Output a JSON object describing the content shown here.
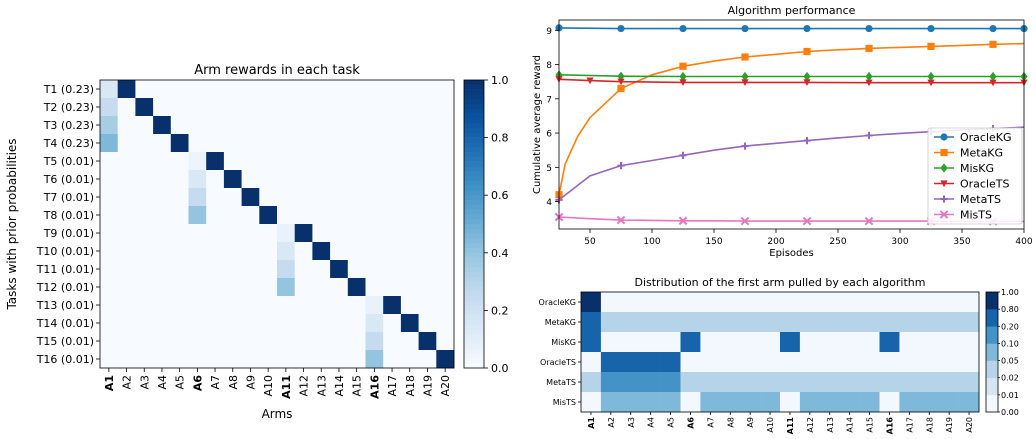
{
  "chart_data": [
    {
      "type": "heatmap",
      "title": "Arm rewards in each task",
      "xlabel": "Arms",
      "ylabel": "Tasks with prior probabilities",
      "x_tick_labels": [
        "A1",
        "A2",
        "A3",
        "A4",
        "A5",
        "A6",
        "A7",
        "A8",
        "A9",
        "A10",
        "A11",
        "A12",
        "A13",
        "A14",
        "A15",
        "A16",
        "A17",
        "A18",
        "A19",
        "A20"
      ],
      "bold_x_ticks": [
        "A1",
        "A6",
        "A11",
        "A16"
      ],
      "y_tick_labels": [
        "T1 (0.23)",
        "T2 (0.23)",
        "T3 (0.23)",
        "T4 (0.23)",
        "T5 (0.01)",
        "T6 (0.01)",
        "T7 (0.01)",
        "T8 (0.01)",
        "T9 (0.01)",
        "T10 (0.01)",
        "T11 (0.01)",
        "T12 (0.01)",
        "T13 (0.01)",
        "T14 (0.01)",
        "T15 (0.01)",
        "T16 (0.01)"
      ],
      "colormap": "Blues",
      "vmin": 0,
      "vmax": 1,
      "colorbar_ticks": [
        "0.0",
        "0.2",
        "0.4",
        "0.6",
        "0.8",
        "1.0"
      ],
      "matrix": [
        [
          0.15,
          1,
          0,
          0,
          0,
          0,
          0,
          0,
          0,
          0,
          0,
          0,
          0,
          0,
          0,
          0,
          0,
          0,
          0,
          0
        ],
        [
          0.25,
          0,
          1,
          0,
          0,
          0,
          0,
          0,
          0,
          0,
          0,
          0,
          0,
          0,
          0,
          0,
          0,
          0,
          0,
          0
        ],
        [
          0.35,
          0,
          0,
          1,
          0,
          0,
          0,
          0,
          0,
          0,
          0,
          0,
          0,
          0,
          0,
          0,
          0,
          0,
          0,
          0
        ],
        [
          0.45,
          0,
          0,
          0,
          1,
          0,
          0,
          0,
          0,
          0,
          0,
          0,
          0,
          0,
          0,
          0,
          0,
          0,
          0,
          0
        ],
        [
          0,
          0,
          0,
          0,
          0,
          0.05,
          1,
          0,
          0,
          0,
          0,
          0,
          0,
          0,
          0,
          0,
          0,
          0,
          0,
          0
        ],
        [
          0,
          0,
          0,
          0,
          0,
          0.15,
          0,
          1,
          0,
          0,
          0,
          0,
          0,
          0,
          0,
          0,
          0,
          0,
          0,
          0
        ],
        [
          0,
          0,
          0,
          0,
          0,
          0.25,
          0,
          0,
          1,
          0,
          0,
          0,
          0,
          0,
          0,
          0,
          0,
          0,
          0,
          0
        ],
        [
          0,
          0,
          0,
          0,
          0,
          0.4,
          0,
          0,
          0,
          1,
          0,
          0,
          0,
          0,
          0,
          0,
          0,
          0,
          0,
          0
        ],
        [
          0,
          0,
          0,
          0,
          0,
          0,
          0,
          0,
          0,
          0,
          0.07,
          1,
          0,
          0,
          0,
          0,
          0,
          0,
          0,
          0
        ],
        [
          0,
          0,
          0,
          0,
          0,
          0,
          0,
          0,
          0,
          0,
          0.15,
          0,
          1,
          0,
          0,
          0,
          0,
          0,
          0,
          0
        ],
        [
          0,
          0,
          0,
          0,
          0,
          0,
          0,
          0,
          0,
          0,
          0.25,
          0,
          0,
          1,
          0,
          0,
          0,
          0,
          0,
          0
        ],
        [
          0,
          0,
          0,
          0,
          0,
          0,
          0,
          0,
          0,
          0,
          0.4,
          0,
          0,
          0,
          1,
          0,
          0,
          0,
          0,
          0
        ],
        [
          0,
          0,
          0,
          0,
          0,
          0,
          0,
          0,
          0,
          0,
          0,
          0,
          0,
          0,
          0,
          0.07,
          1,
          0,
          0,
          0
        ],
        [
          0,
          0,
          0,
          0,
          0,
          0,
          0,
          0,
          0,
          0,
          0,
          0,
          0,
          0,
          0,
          0.15,
          0,
          1,
          0,
          0
        ],
        [
          0,
          0,
          0,
          0,
          0,
          0,
          0,
          0,
          0,
          0,
          0,
          0,
          0,
          0,
          0,
          0.25,
          0,
          0,
          1,
          0
        ],
        [
          0,
          0,
          0,
          0,
          0,
          0,
          0,
          0,
          0,
          0,
          0,
          0,
          0,
          0,
          0,
          0.4,
          0,
          0,
          0,
          1
        ]
      ]
    },
    {
      "type": "line",
      "title": "Algorithm performance",
      "xlabel": "Episodes",
      "ylabel": "Cumulative average reward",
      "xlim": [
        25,
        400
      ],
      "ylim": [
        3.2,
        9.3
      ],
      "x_ticks": [
        "50",
        "100",
        "150",
        "200",
        "250",
        "300",
        "350",
        "400"
      ],
      "y_ticks": [
        "4",
        "5",
        "6",
        "7",
        "8",
        "9"
      ],
      "legend_position": "right",
      "series": [
        {
          "name": "OracleKG",
          "color": "#1f77b4",
          "marker": "circle",
          "x": [
            25,
            75,
            125,
            175,
            225,
            275,
            325,
            375,
            400
          ],
          "y": [
            9.07,
            9.05,
            9.05,
            9.05,
            9.05,
            9.05,
            9.05,
            9.05,
            9.05
          ]
        },
        {
          "name": "MetaKG",
          "color": "#ff7f0e",
          "marker": "square",
          "x": [
            25,
            30,
            40,
            50,
            75,
            100,
            125,
            150,
            175,
            200,
            225,
            250,
            275,
            300,
            325,
            350,
            375,
            400
          ],
          "y": [
            4.2,
            5.1,
            5.9,
            6.45,
            7.3,
            7.7,
            7.95,
            8.1,
            8.22,
            8.3,
            8.38,
            8.43,
            8.47,
            8.5,
            8.53,
            8.56,
            8.59,
            8.61
          ]
        },
        {
          "name": "MisKG",
          "color": "#2ca02c",
          "marker": "diamond",
          "x": [
            25,
            75,
            125,
            175,
            225,
            275,
            325,
            375,
            400
          ],
          "y": [
            7.7,
            7.66,
            7.65,
            7.65,
            7.65,
            7.65,
            7.65,
            7.65,
            7.65
          ]
        },
        {
          "name": "OracleTS",
          "color": "#d62728",
          "marker": "triangle-down",
          "x": [
            25,
            50,
            75,
            125,
            175,
            225,
            275,
            325,
            375,
            400
          ],
          "y": [
            7.57,
            7.53,
            7.5,
            7.48,
            7.48,
            7.48,
            7.47,
            7.47,
            7.47,
            7.47
          ]
        },
        {
          "name": "MetaTS",
          "color": "#9467bd",
          "marker": "plus",
          "x": [
            25,
            50,
            75,
            100,
            125,
            150,
            175,
            200,
            225,
            250,
            275,
            300,
            325,
            350,
            375,
            400
          ],
          "y": [
            4.05,
            4.75,
            5.05,
            5.2,
            5.35,
            5.5,
            5.62,
            5.7,
            5.78,
            5.86,
            5.93,
            5.99,
            6.04,
            6.09,
            6.13,
            6.17
          ]
        },
        {
          "name": "MisTS",
          "color": "#e377c2",
          "marker": "x",
          "x": [
            25,
            50,
            75,
            100,
            125,
            150,
            175,
            200,
            225,
            250,
            275,
            300,
            325,
            350,
            375,
            400
          ],
          "y": [
            3.55,
            3.5,
            3.46,
            3.45,
            3.44,
            3.44,
            3.43,
            3.43,
            3.43,
            3.43,
            3.43,
            3.43,
            3.43,
            3.42,
            3.42,
            3.42
          ]
        }
      ]
    },
    {
      "type": "heatmap",
      "title": "Distribution of the first arm pulled by each algorithm",
      "x_tick_labels": [
        "A1",
        "A2",
        "A3",
        "A4",
        "A5",
        "A6",
        "A7",
        "A8",
        "A9",
        "A10",
        "A11",
        "A12",
        "A13",
        "A14",
        "A15",
        "A16",
        "A17",
        "A18",
        "A19",
        "A20"
      ],
      "bold_x_ticks": [
        "A1",
        "A6",
        "A11",
        "A16"
      ],
      "y_tick_labels": [
        "OracleKG",
        "MetaKG",
        "MisKG",
        "OracleTS",
        "MetaTS",
        "MisTS"
      ],
      "colormap": "Blues (discrete)",
      "colorbar_ticks": [
        "0.00",
        "0.01",
        "0.02",
        "0.05",
        "0.10",
        "0.20",
        "0.80",
        "1.00"
      ],
      "bins": [
        0,
        0.01,
        0.02,
        0.05,
        0.1,
        0.2,
        0.8,
        1.0
      ],
      "matrix": [
        [
          1.0,
          0,
          0,
          0,
          0,
          0,
          0,
          0,
          0,
          0,
          0,
          0,
          0,
          0,
          0,
          0,
          0,
          0,
          0,
          0
        ],
        [
          0.5,
          0.03,
          0.03,
          0.03,
          0.03,
          0.03,
          0.03,
          0.03,
          0.03,
          0.03,
          0.03,
          0.03,
          0.03,
          0.03,
          0.03,
          0.03,
          0.03,
          0.03,
          0.03,
          0.03
        ],
        [
          0.5,
          0,
          0,
          0,
          0,
          0.3,
          0,
          0,
          0,
          0,
          0.3,
          0,
          0,
          0,
          0,
          0.3,
          0,
          0,
          0,
          0
        ],
        [
          0,
          0.3,
          0.3,
          0.3,
          0.3,
          0,
          0,
          0,
          0,
          0,
          0,
          0,
          0,
          0,
          0,
          0,
          0,
          0,
          0,
          0
        ],
        [
          0.03,
          0.15,
          0.15,
          0.15,
          0.15,
          0.03,
          0.03,
          0.03,
          0.03,
          0.03,
          0.03,
          0.03,
          0.03,
          0.03,
          0.03,
          0.03,
          0.03,
          0.03,
          0.03,
          0.03
        ],
        [
          0,
          0.07,
          0.07,
          0.07,
          0.07,
          0,
          0.07,
          0.07,
          0.07,
          0.07,
          0,
          0.07,
          0.07,
          0.07,
          0.07,
          0,
          0.07,
          0.07,
          0.07,
          0.07
        ]
      ]
    }
  ]
}
